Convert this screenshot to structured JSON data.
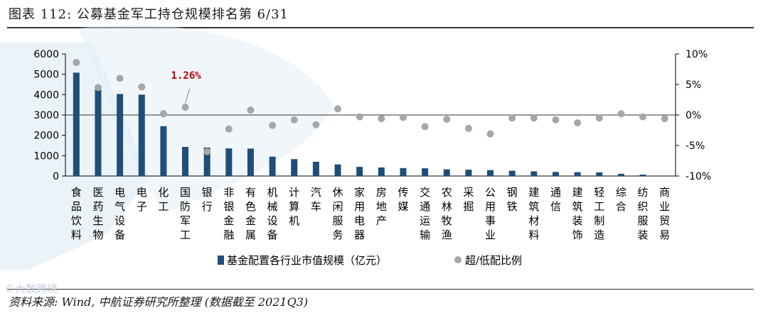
{
  "title": "图表 112: 公募基金军工持仓规模排名第 6/31",
  "source": "资料来源: Wind, 中航证券研究所整理 (数据截至 2021Q3)",
  "watermark": "©大数跨境",
  "colors": {
    "bar": "#1f4e79",
    "dot": "#a6a6a6",
    "highlight": "#c00000",
    "axis": "#000000"
  },
  "chart_data": {
    "type": "bar",
    "categories": [
      "食品饮料",
      "医药生物",
      "电气设备",
      "电子",
      "化工",
      "国防军工",
      "银行",
      "非银金融",
      "有色金属",
      "机械设备",
      "计算机",
      "汽车",
      "休闲服务",
      "家用电器",
      "房地产",
      "传媒",
      "交通运输",
      "农林牧渔",
      "采掘",
      "公用事业",
      "钢铁",
      "建筑材料",
      "通信",
      "建筑装饰",
      "轻工制造",
      "综合",
      "纺织服装",
      "商业贸易"
    ],
    "series": [
      {
        "name": "基金配置各行业市值规模（亿元）",
        "type": "bar",
        "axis": "left",
        "values": [
          5080,
          4250,
          4030,
          4000,
          2450,
          1430,
          1400,
          1360,
          1350,
          950,
          830,
          700,
          570,
          450,
          420,
          390,
          380,
          330,
          310,
          290,
          260,
          230,
          200,
          190,
          180,
          110,
          70,
          0
        ]
      },
      {
        "name": "超/低配比例",
        "type": "scatter",
        "axis": "right",
        "values": [
          8.6,
          4.5,
          6.0,
          4.6,
          0.2,
          1.26,
          -6.0,
          -2.3,
          0.8,
          -1.7,
          -0.8,
          -1.6,
          1.0,
          -0.3,
          -0.6,
          -0.4,
          -1.9,
          -0.7,
          -2.2,
          -3.1,
          -0.5,
          -0.5,
          -0.8,
          -1.3,
          -0.5,
          0.2,
          -0.3,
          -0.6
        ]
      }
    ],
    "left_axis": {
      "min": 0,
      "max": 6000,
      "ticks": [
        0,
        1000,
        2000,
        3000,
        4000,
        5000,
        6000
      ],
      "tick_labels": [
        "0",
        "1000",
        "2000",
        "3000",
        "4000",
        "5000",
        "6000"
      ]
    },
    "right_axis": {
      "min": -10,
      "max": 10,
      "ticks": [
        -10,
        -5,
        0,
        5,
        10
      ],
      "tick_labels": [
        "-10%",
        "-5%",
        "0%",
        "5%",
        "10%"
      ]
    },
    "annotation": {
      "text": "1.26%",
      "category_index": 5
    },
    "legend": [
      "基金配置各行业市值规模（亿元）",
      "超/低配比例"
    ]
  }
}
